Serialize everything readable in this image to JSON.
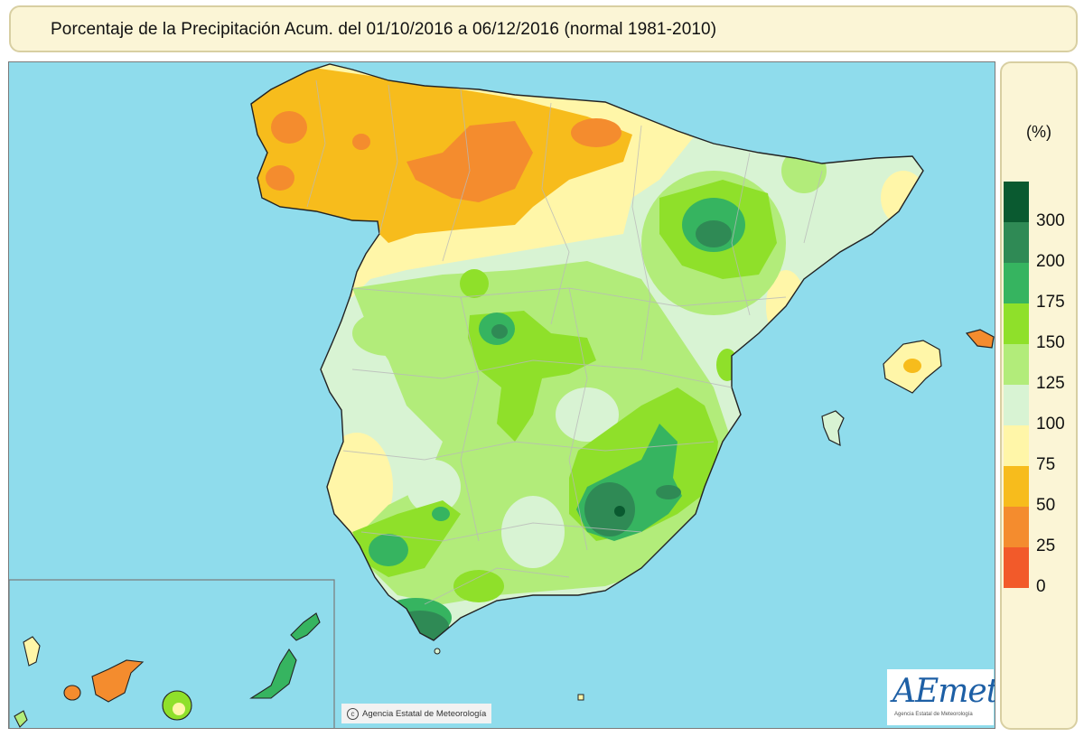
{
  "header": {
    "title": "Porcentaje de la Precipitación Acum. del 01/10/2016 a  06/12/2016  (normal 1981-2010)"
  },
  "legend": {
    "unit": "(%)",
    "classes": [
      {
        "label": "",
        "color": "#0a5a30"
      },
      {
        "label": "300",
        "color": "#2f8a55"
      },
      {
        "label": "200",
        "color": "#36b460"
      },
      {
        "label": "175",
        "color": "#8fe02a"
      },
      {
        "label": "150",
        "color": "#b2ec7a"
      },
      {
        "label": "125",
        "color": "#d8f3d3"
      },
      {
        "label": "100",
        "color": "#fff6a8"
      },
      {
        "label": "75",
        "color": "#f7bc1c"
      },
      {
        "label": "50",
        "color": "#f48c2e"
      },
      {
        "label": "25",
        "color": "#f25a2a"
      },
      {
        "label": "0",
        "color": ""
      }
    ]
  },
  "map": {
    "sea_color": "#8fdcec",
    "credit": "Agencia Estatal de Meteorología",
    "credit_icon": "copyright-icon",
    "logo": {
      "text": "AEmet",
      "subtitle": "Agencia Estatal de Meteorología"
    }
  }
}
